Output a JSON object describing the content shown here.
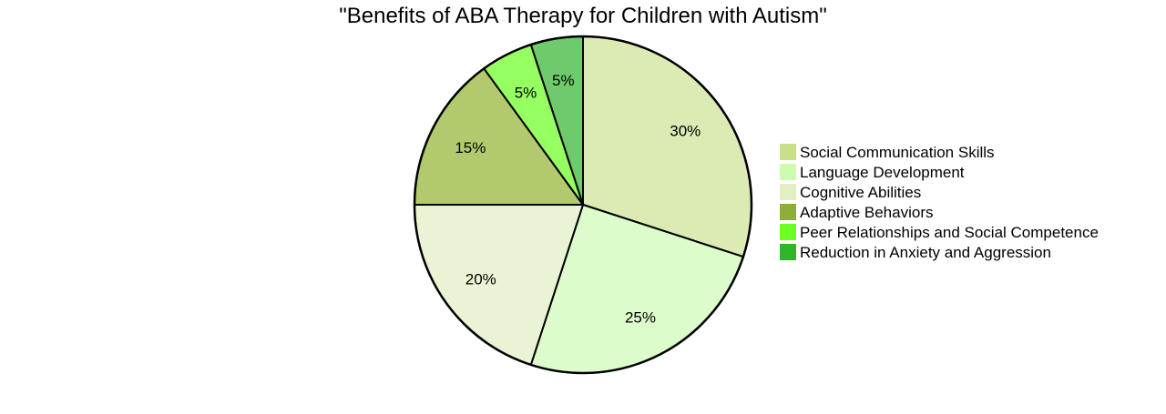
{
  "chart_data": {
    "type": "pie",
    "title": "\"Benefits of ABA Therapy for Children with Autism\"",
    "legend_position": "right",
    "slices": [
      {
        "label": "Social Communication Skills",
        "value": 30,
        "display": "30%",
        "color": "#dceab4",
        "legend_color": "#c9df8a"
      },
      {
        "label": "Language Development",
        "value": 25,
        "display": "25%",
        "color": "#dcfccb",
        "legend_color": "#ccfbb1"
      },
      {
        "label": "Cognitive Abilities",
        "value": 20,
        "display": "20%",
        "color": "#eaf3d4",
        "legend_color": "#e2efc3"
      },
      {
        "label": "Adaptive Behaviors",
        "value": 15,
        "display": "15%",
        "color": "#b1ca6d",
        "legend_color": "#8fae36"
      },
      {
        "label": "Peer Relationships and Social Competence",
        "value": 5,
        "display": "5%",
        "color": "#96ff62",
        "legend_color": "#6bff22"
      },
      {
        "label": "Reduction in Anxiety and Aggression",
        "value": 5,
        "display": "5%",
        "color": "#6fca6b",
        "legend_color": "#30b42c"
      }
    ]
  }
}
